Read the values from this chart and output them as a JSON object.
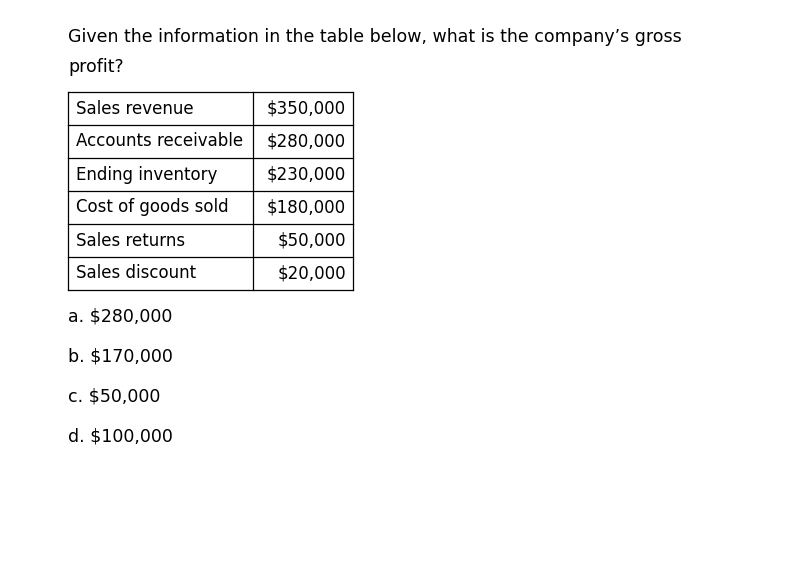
{
  "question_line1": "Given the information in the table below, what is the company’s gross",
  "question_line2": "profit?",
  "table_rows": [
    [
      "Sales revenue",
      "$350,000"
    ],
    [
      "Accounts receivable",
      "$280,000"
    ],
    [
      "Ending inventory",
      "$230,000"
    ],
    [
      "Cost of goods sold",
      "$180,000"
    ],
    [
      "Sales returns",
      "$50,000"
    ],
    [
      "Sales discount",
      "$20,000"
    ]
  ],
  "choices": [
    "a. $280,000",
    "b. $170,000",
    "c. $50,000",
    "d. $100,000"
  ],
  "background_color": "#ffffff",
  "text_color": "#000000",
  "font_size": 12.0,
  "choice_font_size": 12.5,
  "question_font_size": 12.5
}
